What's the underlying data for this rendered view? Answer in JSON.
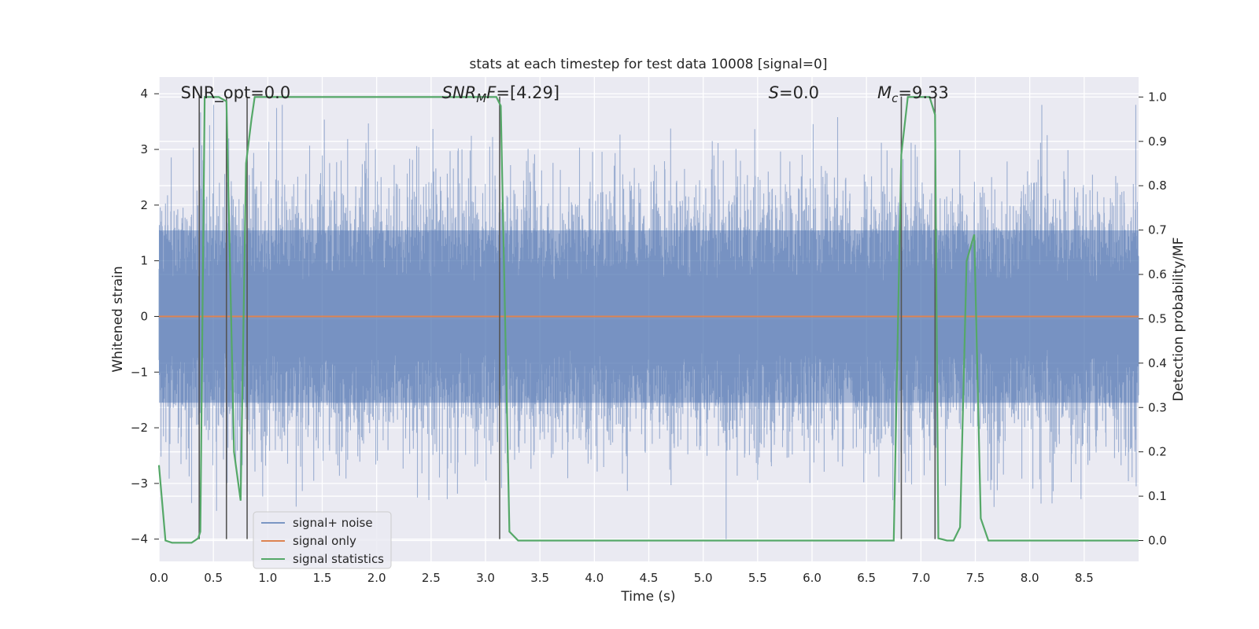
{
  "chart_data": {
    "type": "line",
    "title": "stats at each timestep for test data 10008 [signal=0]",
    "xlabel": "Time (s)",
    "ylabel": "Whitened strain",
    "y2label": "Detection probability/MF",
    "xlim": [
      0.0,
      9.0
    ],
    "ylim": [
      -4.4,
      4.3
    ],
    "y2lim": [
      -0.047,
      1.045
    ],
    "xticks": [
      "0.0",
      "0.5",
      "1.0",
      "1.5",
      "2.0",
      "2.5",
      "3.0",
      "3.5",
      "4.0",
      "4.5",
      "5.0",
      "5.5",
      "6.0",
      "6.5",
      "7.0",
      "7.5",
      "8.0",
      "8.5"
    ],
    "yticks": [
      "4",
      "3",
      "2",
      "1",
      "0",
      "−1",
      "−2",
      "−3",
      "−4"
    ],
    "y2ticks": [
      "1.0",
      "0.9",
      "0.8",
      "0.7",
      "0.6",
      "0.5",
      "0.4",
      "0.3",
      "0.2",
      "0.1",
      "0.0"
    ],
    "grid": true,
    "legend_position": "lower-left",
    "annotations": [
      {
        "label": "SNR_opt=0.0",
        "x": 0.2,
        "y": 3.95
      },
      {
        "label": "SNR_MF=[4.29]",
        "x": 2.6,
        "y": 3.95
      },
      {
        "label": "S=0.0",
        "x": 5.6,
        "y": 3.95
      },
      {
        "label": "M_c=9.33",
        "x": 6.6,
        "y": 3.95
      }
    ],
    "vertical_markers": [
      0.37,
      0.62,
      0.81,
      3.13,
      6.82,
      7.13
    ],
    "series": [
      {
        "name": "signal+ noise",
        "color": "#4c72b0",
        "alpha": 0.5,
        "description_values": {
          "noise_std": 1.0,
          "typical_abs_max": 3.8
        }
      },
      {
        "name": "signal only",
        "color": "#dd8452",
        "values_constant": 0.0
      },
      {
        "name": "signal statistics",
        "color": "#55a868",
        "axis": "right",
        "x": [
          0.0,
          0.06,
          0.12,
          0.3,
          0.36,
          0.38,
          0.42,
          0.48,
          0.55,
          0.62,
          0.69,
          0.75,
          0.8,
          0.85,
          0.88,
          1.0,
          2.0,
          3.0,
          3.1,
          3.14,
          3.22,
          3.3,
          4.0,
          5.0,
          6.0,
          6.75,
          6.82,
          6.88,
          7.0,
          7.08,
          7.13,
          7.16,
          7.24,
          7.3,
          7.36,
          7.42,
          7.49,
          7.55,
          7.62,
          8.0,
          9.0
        ],
        "values": [
          0.17,
          0.0,
          -0.005,
          -0.005,
          0.005,
          0.02,
          1.0,
          1.0,
          1.0,
          0.99,
          0.2,
          0.09,
          0.85,
          0.95,
          1.0,
          1.0,
          1.0,
          1.0,
          1.0,
          0.98,
          0.02,
          0.0,
          0.0,
          0.0,
          0.0,
          0.0,
          0.87,
          1.0,
          1.0,
          1.0,
          0.96,
          0.005,
          0.0,
          0.0,
          0.03,
          0.63,
          0.69,
          0.05,
          0.0,
          0.0,
          0.0
        ]
      }
    ]
  }
}
